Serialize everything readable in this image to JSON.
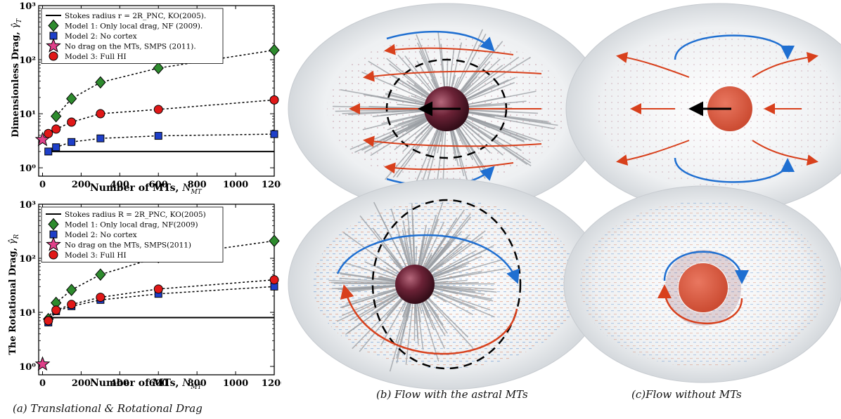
{
  "chart_data": [
    {
      "type": "line",
      "ylog": true,
      "ylabel": "Dimensionless Drag, γ̂T",
      "xlabel": "Number of MTs, N_MT",
      "xlim": [
        -20,
        1200
      ],
      "ylim": [
        0.7,
        1000
      ],
      "xticks": [
        "0",
        "200",
        "400",
        "600",
        "800",
        "1000",
        "1200"
      ],
      "yticks": [
        "10⁰",
        "10¹",
        "10²",
        "10³"
      ],
      "legend_position": "top-left",
      "series": [
        {
          "name": "Stokes radius r = 2R_PNC, KO(2005).",
          "marker": "none",
          "color": "#000000",
          "x": [
            25,
            1200
          ],
          "y": [
            2.0,
            2.0
          ]
        },
        {
          "name": "Model 1: Only local drag, NF (2009).",
          "marker": "diamond",
          "color": "#2e8b2e",
          "x": [
            70,
            150,
            300,
            600,
            1200
          ],
          "y": [
            9,
            19,
            38,
            70,
            150
          ]
        },
        {
          "name": "Model 2: No cortex",
          "marker": "square",
          "color": "#1e3fc9",
          "x": [
            30,
            70,
            150,
            300,
            600,
            1200
          ],
          "y": [
            2.0,
            2.4,
            3.0,
            3.5,
            3.9,
            4.2
          ]
        },
        {
          "name": "No drag on the MTs, SMPS (2011).",
          "marker": "star",
          "color": "#e0418a",
          "x": [
            0
          ],
          "y": [
            3.3
          ]
        },
        {
          "name": "Model 3: Full HI",
          "marker": "circle",
          "color": "#e01818",
          "x": [
            30,
            70,
            150,
            300,
            600,
            1200
          ],
          "y": [
            4.3,
            5.2,
            7.0,
            10.0,
            12.0,
            18.0
          ]
        }
      ]
    },
    {
      "type": "line",
      "ylog": true,
      "ylabel": "The Rotational Drag, γ̂R",
      "xlabel": "Number of MTs, N_MT",
      "xlim": [
        -20,
        1200
      ],
      "ylim": [
        0.7,
        1000
      ],
      "xticks": [
        "0",
        "200",
        "400",
        "600",
        "800",
        "1000",
        "1200"
      ],
      "yticks": [
        "10⁰",
        "10¹",
        "10²",
        "10³"
      ],
      "legend_position": "top-left",
      "series": [
        {
          "name": "Stokes radius R = 2R_PNC, KO(2005)",
          "marker": "none",
          "color": "#000000",
          "x": [
            25,
            1200
          ],
          "y": [
            8.0,
            8.0
          ]
        },
        {
          "name": "Model 1: Only local drag, NF(2009)",
          "marker": "diamond",
          "color": "#2e8b2e",
          "x": [
            30,
            70,
            150,
            300,
            600,
            1200
          ],
          "y": [
            7.5,
            15,
            26,
            50,
            105,
            210
          ]
        },
        {
          "name": "Model 2: No cortex",
          "marker": "square",
          "color": "#1e3fc9",
          "x": [
            30,
            70,
            150,
            300,
            600,
            1200
          ],
          "y": [
            6.5,
            10.5,
            13.0,
            17.0,
            22.0,
            30.0
          ]
        },
        {
          "name": "No drag on the MTs, SMPS(2011)",
          "marker": "star",
          "color": "#e0418a",
          "x": [
            0
          ],
          "y": [
            1.1
          ]
        },
        {
          "name": "Model 3: Full HI",
          "marker": "circle",
          "color": "#e01818",
          "x": [
            30,
            70,
            150,
            300,
            600,
            1200
          ],
          "y": [
            7.0,
            11.0,
            14.0,
            19.0,
            27.0,
            40.0
          ]
        }
      ]
    }
  ],
  "axis_labels": {
    "top_ylabel_main": "Dimensionless Drag,",
    "top_ylabel_sym": "γ̂",
    "top_ylabel_sub": "T",
    "bottom_ylabel_main": "The Rotational Drag,",
    "bottom_ylabel_sym": "γ̂",
    "bottom_ylabel_sub": "R",
    "xlabel_main": "Number of MTs,",
    "xlabel_sym": "N",
    "xlabel_sub": "MT"
  },
  "captions": {
    "a": "(a) Translational & Rotational Drag",
    "b": "(b) Flow with the astral MTs",
    "c": "(c)Flow without MTs"
  },
  "colors": {
    "flow_blue": "#1f6fd1",
    "flow_red": "#d8401c",
    "sphere_dark": "#5b1a2c",
    "sphere_light": "#d9533a",
    "cell_gray": "#e4e7ea"
  }
}
